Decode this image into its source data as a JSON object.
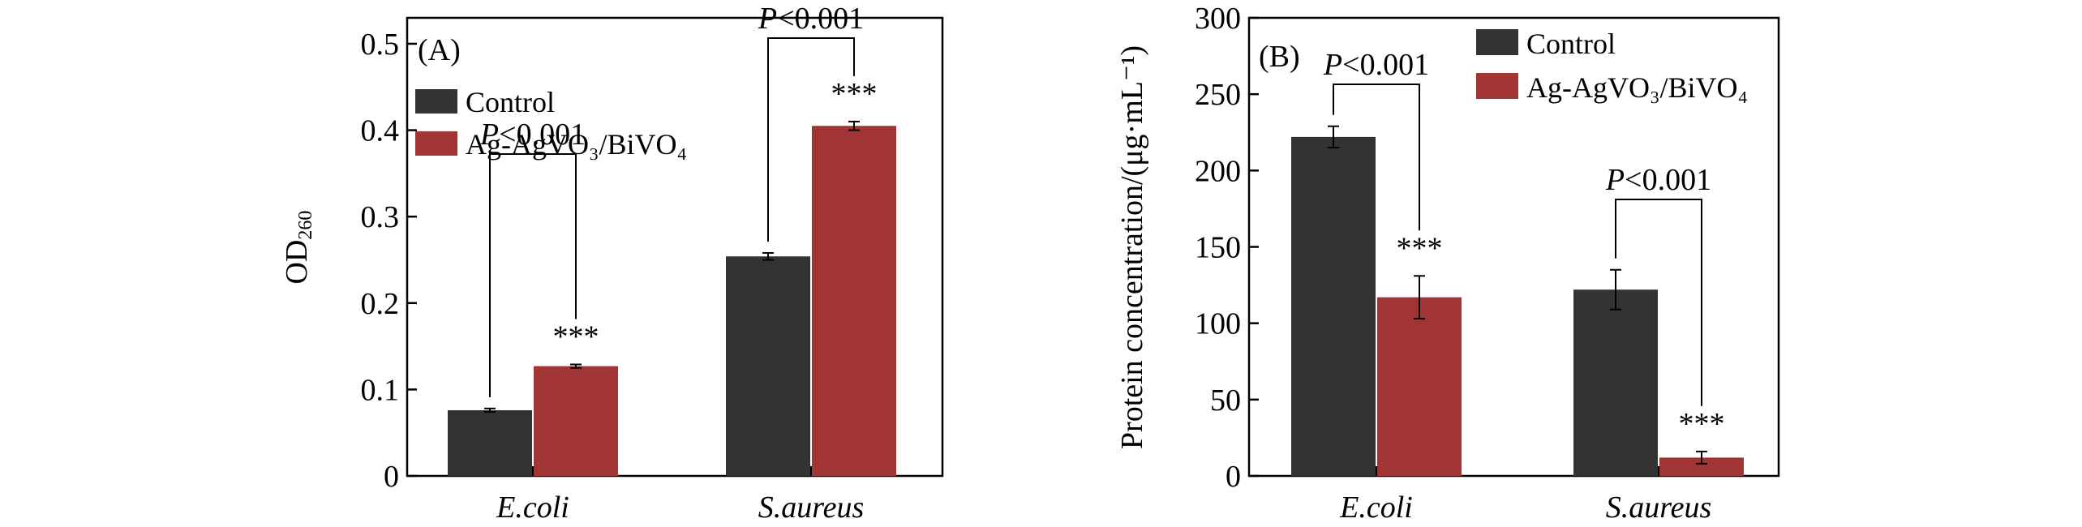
{
  "colors": {
    "control": "#333333",
    "treated": "#A13434",
    "axis": "#000000"
  },
  "chart_data": [
    {
      "type": "bar",
      "panel_label": "(A)",
      "ylabel_main": "OD",
      "ylabel_sub": "260",
      "categories": [
        "E.coli",
        "S.aureus"
      ],
      "series": [
        {
          "name": "Control",
          "values": [
            0.076,
            0.254
          ],
          "errors": [
            0.002,
            0.004
          ]
        },
        {
          "name": "Ag-AgVO₃/BiVO₄",
          "values": [
            0.127,
            0.405
          ],
          "errors": [
            0.002,
            0.005
          ]
        }
      ],
      "ylim": [
        0,
        0.53
      ],
      "yticks": [
        0,
        0.1,
        0.2,
        0.3,
        0.4,
        0.5
      ],
      "ytick_labels": [
        "0",
        "0.1",
        "0.2",
        "0.3",
        "0.4",
        "0.5"
      ],
      "legend_position": "top-left",
      "annotations": [
        {
          "category": 0,
          "p_prefix": "P",
          "p_text": "<0.001",
          "stars": "***"
        },
        {
          "category": 1,
          "p_prefix": "P",
          "p_text": "<0.001",
          "stars": "***"
        }
      ]
    },
    {
      "type": "bar",
      "panel_label": "(B)",
      "ylabel": "Protein concentration/(μg·mL⁻¹)",
      "categories": [
        "E.coli",
        "S.aureus"
      ],
      "series": [
        {
          "name": "Control",
          "values": [
            222,
            122
          ],
          "errors": [
            7,
            13
          ]
        },
        {
          "name": "Ag-AgVO₃/BiVO₄",
          "values": [
            117,
            12
          ],
          "errors": [
            14,
            4
          ]
        }
      ],
      "ylim": [
        0,
        300
      ],
      "yticks": [
        0,
        50,
        100,
        150,
        200,
        250,
        300
      ],
      "ytick_labels": [
        "0",
        "50",
        "100",
        "150",
        "200",
        "250",
        "300"
      ],
      "legend_position": "top-right",
      "annotations": [
        {
          "category": 0,
          "p_prefix": "P",
          "p_text": "<0.001",
          "stars": "***"
        },
        {
          "category": 1,
          "p_prefix": "P",
          "p_text": "<0.001",
          "stars": "***"
        }
      ]
    }
  ]
}
